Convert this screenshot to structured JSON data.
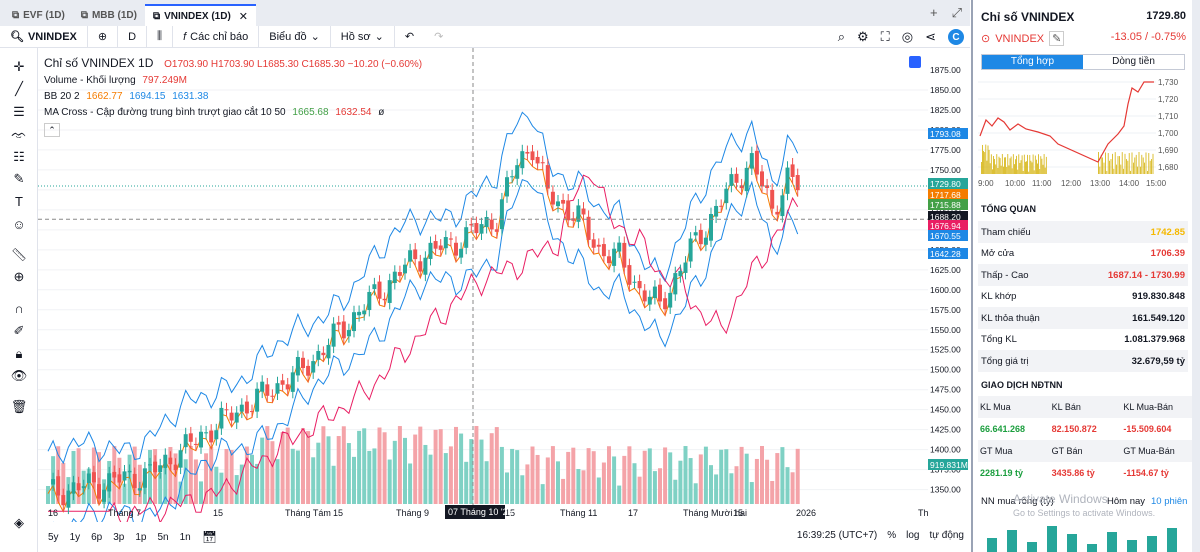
{
  "tabs": [
    {
      "label": "EVF (1D)",
      "active": false
    },
    {
      "label": "MBB (1D)",
      "active": false
    },
    {
      "label": "VNINDEX (1D)",
      "active": true
    }
  ],
  "toolbar": {
    "symbol": "VNINDEX",
    "interval": "D",
    "indicators": "Các chỉ báo",
    "chart_type": "Biểu đồ",
    "profile": "Hồ sơ"
  },
  "legend": {
    "title": "Chỉ số VNINDEX  1D",
    "ohlc": "O1703.90  H1703.90  L1685.30  C1685.30  −10.20 (−0.60%)",
    "volume_label": "Volume - Khối lượng",
    "volume_value": "797.249M",
    "bb_label": "BB 20 2",
    "bb_mid": "1662.77",
    "bb_up": "1694.15",
    "bb_low": "1631.38",
    "ma_label": "MA Cross - Cập đường trung bình trượt giao cắt 10 50",
    "ma_fast": "1665.68",
    "ma_slow": "1632.54",
    "ma_extra": "ø"
  },
  "price_axis": {
    "ticks": [
      "1875.00",
      "1850.00",
      "1825.00",
      "1800.00",
      "1775.00",
      "1750.00",
      "1725.00",
      "1700.00",
      "1675.00",
      "1650.00",
      "1625.00",
      "1600.00",
      "1575.00",
      "1550.00",
      "1525.00",
      "1500.00",
      "1475.00",
      "1450.00",
      "1425.00",
      "1400.00",
      "1375.00",
      "1350.00"
    ],
    "tags": [
      {
        "label": "1793.08",
        "color": "#1e88e5"
      },
      {
        "label": "1729.80",
        "color": "#26a69a"
      },
      {
        "label": "1717.68",
        "color": "#f57c00"
      },
      {
        "label": "1715.88",
        "color": "#43a047"
      },
      {
        "label": "1688.20",
        "color": "#131722"
      },
      {
        "label": "1676.94",
        "color": "#e91e63"
      },
      {
        "label": "1670.55",
        "color": "#1e88e5"
      },
      {
        "label": "1642.28",
        "color": "#1e88e5"
      },
      {
        "label": "919.831M",
        "color": "#26a69a"
      }
    ]
  },
  "time_axis": [
    "16",
    "Tháng 7",
    "15",
    "Tháng Tám",
    "15",
    "Tháng 9",
    "17",
    "15",
    "Tháng 11",
    "17",
    "Tháng Mười hai",
    "15",
    "2026",
    "Tháng"
  ],
  "crosshair_label": "07 Tháng 10 '25",
  "bottom": {
    "ranges": [
      "5y",
      "1y",
      "6p",
      "3p",
      "1p",
      "5n",
      "1n"
    ],
    "clock": "16:39:25 (UTC+7)",
    "percent": "%",
    "log": "log",
    "auto": "tự động"
  },
  "panel": {
    "title": "Chỉ số VNINDEX",
    "price": "1729.80",
    "symbol": "VNINDEX",
    "change": "-13.05 / -0.75%",
    "tabs": [
      "Tổng hợp",
      "Dòng tiền"
    ],
    "mini_y": [
      "1,730",
      "1,720",
      "1,710",
      "1,700",
      "1,690",
      "1,680"
    ],
    "mini_x": [
      "9:00",
      "10:00",
      "11:00",
      "12:00",
      "13:00",
      "14:00",
      "15:00"
    ],
    "overview_title": "TỔNG QUAN",
    "overview": [
      {
        "label": "Tham chiếu",
        "value": "1742.85",
        "color": "#f5b800"
      },
      {
        "label": "Mở cửa",
        "value": "1706.39",
        "color": "#e53935"
      },
      {
        "label": "Thấp - Cao",
        "value": "1687.14 - 1730.99",
        "color": "#e53935"
      },
      {
        "label": "KL khớp",
        "value": "919.830.848",
        "color": "#131722"
      },
      {
        "label": "KL thỏa thuận",
        "value": "161.549.120",
        "color": "#131722"
      },
      {
        "label": "Tổng KL",
        "value": "1.081.379.968",
        "color": "#131722"
      },
      {
        "label": "Tổng giá trị",
        "value": "32.679,59 tỷ",
        "color": "#131722"
      }
    ],
    "foreign_title": "GIAO DỊCH NĐTNN",
    "foreign_headers1": [
      "KL Mua",
      "KL Bán",
      "KL Mua-Bán"
    ],
    "foreign_values1": [
      "66.641.268",
      "82.150.872",
      "-15.509.604"
    ],
    "foreign_headers2": [
      "GT Mua",
      "GT Bán",
      "GT Mua-Bán"
    ],
    "foreign_values2": [
      "2281.19 tỷ",
      "3435.86 tỷ",
      "-1154.67 tỷ"
    ],
    "net_title": "NN mua ròng (tỷ)",
    "net_period": "Hôm nay",
    "net_count": "10 phiên",
    "watermark1": "Activate Windows",
    "watermark2": "Go to Settings to activate Windows."
  }
}
